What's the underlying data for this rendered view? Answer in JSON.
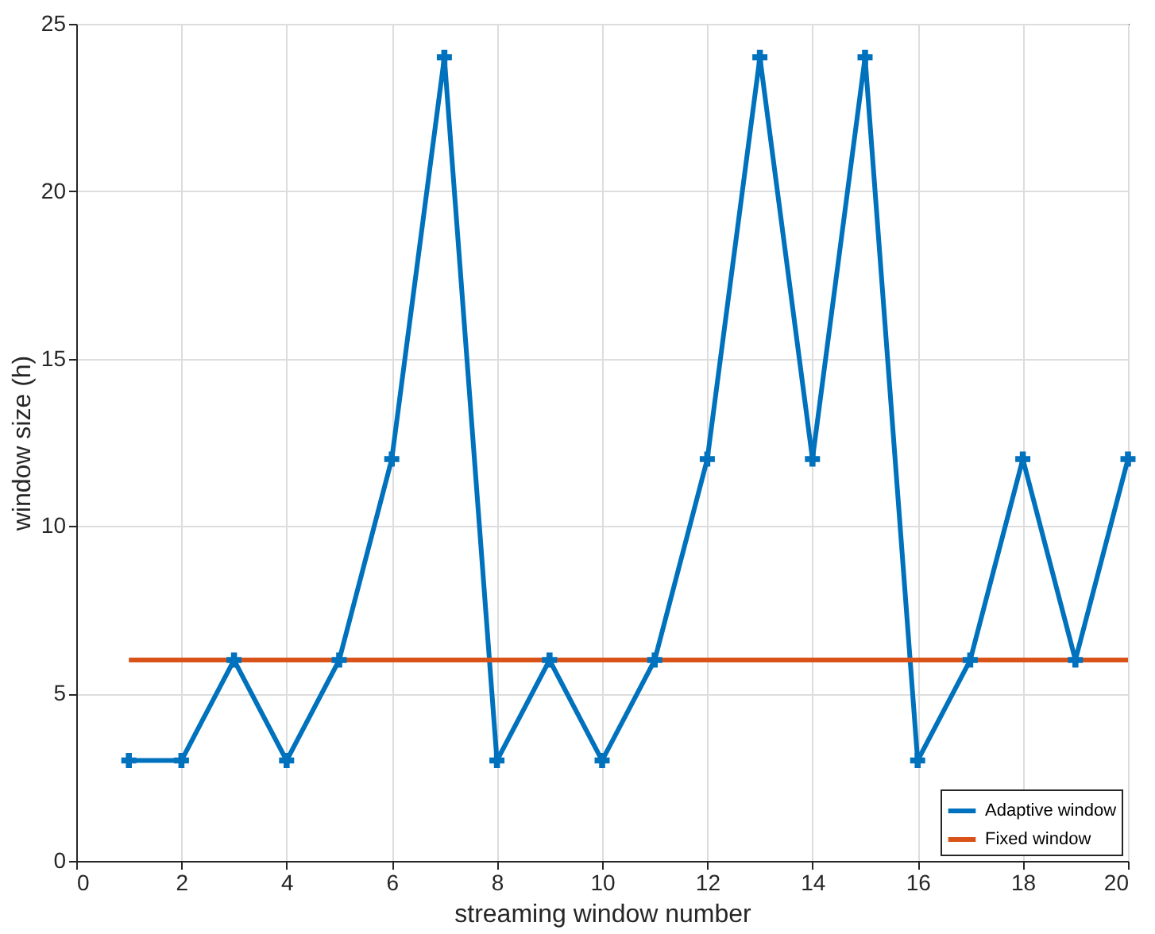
{
  "chart_data": {
    "type": "line",
    "xlabel": "streaming window number",
    "ylabel": "window size (h)",
    "xlim": [
      0,
      20
    ],
    "xticks": [
      0,
      2,
      4,
      6,
      8,
      10,
      12,
      14,
      16,
      18,
      20
    ],
    "ylim": [
      0,
      25
    ],
    "yticks": [
      0,
      5,
      10,
      15,
      20,
      25
    ],
    "grid": true,
    "legend": "bottom right",
    "series": [
      {
        "name": "Adaptive window",
        "color": "#0072bd",
        "marker": "cross",
        "x": [
          1,
          2,
          3,
          4,
          5,
          6,
          7,
          8,
          9,
          10,
          11,
          12,
          13,
          14,
          15,
          16,
          17,
          18,
          19,
          20
        ],
        "values": [
          3,
          3,
          6,
          3,
          6,
          12,
          24,
          3,
          6,
          3,
          6,
          12,
          24,
          12,
          24,
          3,
          6,
          12,
          6,
          12
        ]
      },
      {
        "name": "Fixed window",
        "color": "#d95319",
        "marker": "none",
        "x": [
          1,
          20
        ],
        "values": [
          6,
          6
        ]
      }
    ]
  }
}
